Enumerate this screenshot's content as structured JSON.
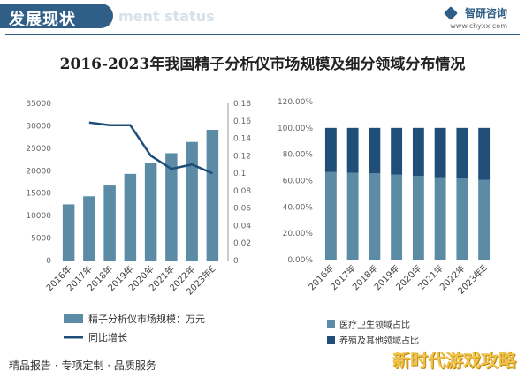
{
  "header": {
    "title": "发展现状",
    "ghost_text": "ment status",
    "brand_name": "智研咨询",
    "brand_url": "www.chyxx.com"
  },
  "footer": {
    "text": "精品报告 · 专项定制 · 品质服务"
  },
  "watermark": {
    "text": "新时代游戏攻略"
  },
  "colors": {
    "bar": "#5b8ba5",
    "line": "#1f4e79",
    "stack_bottom": "#5b8ba5",
    "stack_top": "#1f4e79",
    "brand": "#2f5f86"
  },
  "chart_data": [
    {
      "type": "bar",
      "title": "2016-2023年我国精子分析仪市场规模及细分领域分布情况",
      "categories": [
        "2016年",
        "2017年",
        "2018年",
        "2019年",
        "2020年",
        "2021年",
        "2022年",
        "2023年E"
      ],
      "series": [
        {
          "name": "精子分析仪市场规模：万元",
          "type": "bar",
          "axis": "left",
          "values": [
            12500,
            14300,
            16700,
            19300,
            21700,
            23900,
            26400,
            29100
          ]
        },
        {
          "name": "同比增长",
          "type": "line",
          "axis": "right",
          "values": [
            null,
            0.158,
            0.155,
            0.155,
            0.12,
            0.105,
            0.11,
            0.1
          ]
        }
      ],
      "ylim_left": [
        0,
        35000
      ],
      "yticks_left": [
        "0",
        "5000",
        "10000",
        "15000",
        "20000",
        "25000",
        "30000",
        "35000"
      ],
      "ylim_right": [
        0,
        0.18
      ],
      "yticks_right": [
        "0",
        "0.02",
        "0.04",
        "0.06",
        "0.08",
        "0.1",
        "0.12",
        "0.14",
        "0.16",
        "0.18"
      ],
      "legend_position": "bottom"
    },
    {
      "type": "bar",
      "stacked": true,
      "categories": [
        "2016年",
        "2017年",
        "2018年",
        "2019年",
        "2020年",
        "2021年",
        "2022年",
        "2023年E"
      ],
      "series": [
        {
          "name": "医疗卫生领域占比",
          "values": [
            0.665,
            0.66,
            0.655,
            0.645,
            0.635,
            0.625,
            0.615,
            0.605
          ]
        },
        {
          "name": "养殖及其他领域占比",
          "values": [
            0.335,
            0.34,
            0.345,
            0.355,
            0.365,
            0.375,
            0.385,
            0.395
          ]
        }
      ],
      "ylim": [
        0,
        1.2
      ],
      "yticks": [
        "0.00%",
        "20.00%",
        "40.00%",
        "60.00%",
        "80.00%",
        "100.00%",
        "120.00%"
      ],
      "legend_position": "bottom"
    }
  ]
}
